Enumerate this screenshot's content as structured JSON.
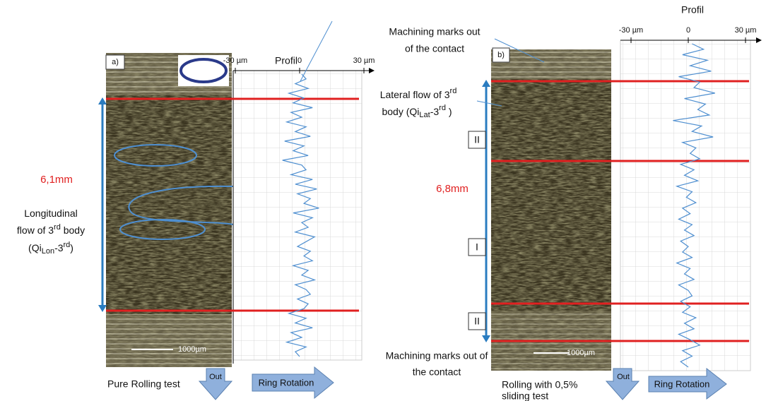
{
  "panels": [
    {
      "label": "a)",
      "profile_title": "Profil",
      "xticks": [
        {
          "value": -30,
          "label": "-30 µm"
        },
        0,
        {
          "value": 30,
          "label": "30 µm"
        }
      ],
      "xlim": [
        -30,
        30
      ],
      "profile": [
        1,
        3,
        -2,
        4,
        -5,
        2,
        -3,
        6,
        -4,
        1,
        -6,
        3,
        -2,
        5,
        -7,
        2,
        -3,
        4,
        -8,
        1,
        3,
        -4,
        6,
        -2,
        8,
        -1,
        5,
        2,
        9,
        -3,
        6,
        1,
        4,
        -2,
        7,
        3,
        -1,
        5,
        2,
        6,
        -3,
        4,
        1,
        7,
        -2,
        3,
        5,
        -1,
        4,
        2,
        -5,
        3,
        -2,
        6,
        -4,
        1,
        -6,
        3,
        -2,
        0
      ],
      "length": "6,1mm",
      "scale": "1000µm",
      "flow": [
        "Longitudinal",
        "flow of 3",
        "rd",
        " body",
        "(Qi",
        "Lon",
        "-3",
        "rd",
        ")"
      ],
      "test": "Pure Rolling test",
      "out": "Out",
      "rotation": "Ring Rotation"
    },
    {
      "label": "b)",
      "profile_title": "Profil",
      "xticks": [
        {
          "value": -30,
          "label": "-30 µm"
        },
        0,
        {
          "value": 30,
          "label": "30 µm"
        }
      ],
      "xlim": [
        -30,
        30
      ],
      "profile": [
        2,
        8,
        -3,
        10,
        1,
        12,
        -5,
        6,
        3,
        14,
        -2,
        9,
        5,
        11,
        -8,
        7,
        2,
        13,
        -3,
        4,
        1,
        6,
        -4,
        3,
        -2,
        5,
        -6,
        2,
        -1,
        4,
        -3,
        1,
        -5,
        2,
        -2,
        3,
        -4,
        0,
        -3,
        2,
        -6,
        1,
        -2,
        3,
        -5,
        0,
        2,
        -4,
        1,
        -3,
        4,
        -2,
        3,
        -5,
        1,
        6,
        -3,
        2,
        -4,
        0
      ],
      "length": "6,8mm",
      "scale": "1000µm",
      "zones": [
        "II",
        "I",
        "II"
      ],
      "marks_top": [
        "Machining marks out",
        "of the contact"
      ],
      "lateral": [
        "Lateral flow of 3",
        "rd",
        "body (Qi",
        "Lat",
        "-3",
        "rd",
        " )"
      ],
      "marks_bottom": [
        "Machining marks out of",
        "the contact"
      ],
      "test": [
        "Rolling with 0,5%",
        "sliding test"
      ],
      "out": "Out",
      "rotation": "Ring Rotation"
    }
  ]
}
